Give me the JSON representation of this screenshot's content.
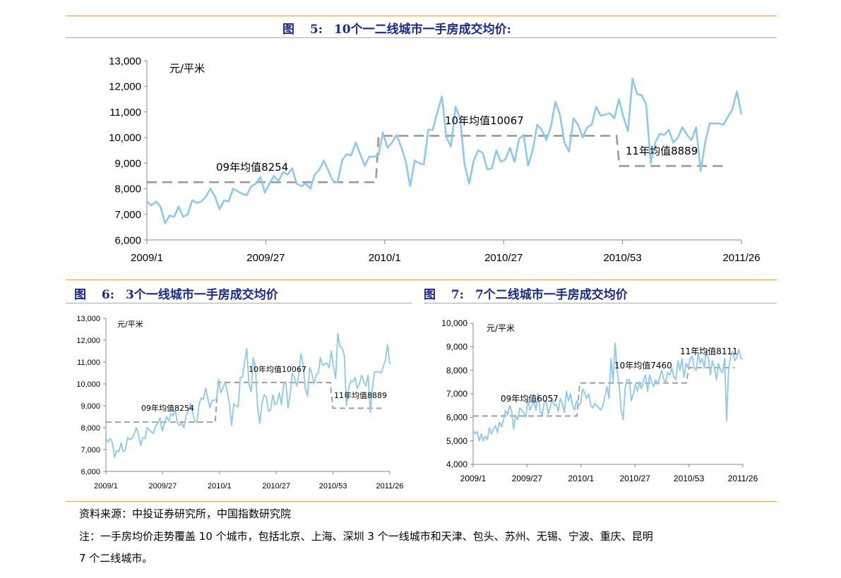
{
  "figures": [
    {
      "label": "图",
      "number": "5:",
      "text": "10个一二线城市一手房成交均价:"
    },
    {
      "label": "图",
      "number": "6:",
      "text": "3个一线城市一手房成交均价"
    },
    {
      "label": "图",
      "number": "7:",
      "text": "7个二线城市一手房成交均价"
    }
  ],
  "footer": {
    "source": "资料来源：中投证券研究所，中国指数研究院",
    "note_line1": "注：一手房均价走势覆盖 10 个城市，包括北京、上海、深圳 3 个一线城市和天津、包头、苏州、无锡、宁波、重庆、昆明",
    "note_line2": "7 个二线城市。"
  },
  "colors": {
    "line": "#8ec8f2",
    "avg": "#999999",
    "rule": "#e8a060",
    "title": "#1a2a8a"
  },
  "chart_data": [
    {
      "type": "line",
      "title": "10个一二线城市一手房成交均价",
      "unit": "元/平米",
      "ylim": [
        6000,
        13000
      ],
      "yticks": [
        6000,
        7000,
        8000,
        9000,
        10000,
        11000,
        12000,
        13000
      ],
      "ytick_labels": [
        "6,000",
        "7,000",
        "8,000",
        "9,000",
        "10,000",
        "11,000",
        "12,000",
        "13,000"
      ],
      "xtick_labels": [
        "2009/1",
        "2009/27",
        "2010/1",
        "2010/27",
        "2010/53",
        "2011/26"
      ],
      "series": [
        {
          "name": "一手房成交均价",
          "values": [
            7500,
            7350,
            7500,
            7300,
            6650,
            6950,
            6900,
            7300,
            6900,
            7000,
            7550,
            7450,
            7500,
            7700,
            8000,
            7700,
            7200,
            7550,
            7500,
            8000,
            7900,
            7800,
            7750,
            8100,
            8200,
            8450,
            7850,
            8200,
            8500,
            8300,
            8650,
            8550,
            8800,
            8200,
            8100,
            8200,
            8000,
            8550,
            8750,
            9100,
            8700,
            8300,
            8250,
            9100,
            9350,
            9300,
            9800,
            9350,
            8900,
            9250,
            9250,
            9300,
            10200,
            9600,
            9800,
            10100,
            9650,
            9100,
            8100,
            9100,
            9000,
            8950,
            10300,
            10300,
            11000,
            11600,
            10000,
            9650,
            11200,
            10750,
            8950,
            8200,
            9100,
            9500,
            9400,
            8750,
            8800,
            9500,
            9050,
            9150,
            9600,
            9050,
            9950,
            10100,
            8900,
            9500,
            10500,
            10300,
            9900,
            10400,
            11400,
            10900,
            9800,
            9450,
            10750,
            10500,
            10000,
            10400,
            10500,
            11200,
            10850,
            10900,
            10950,
            10750,
            11500,
            10800,
            10250,
            12300,
            11700,
            11650,
            11300,
            9000,
            9800,
            10150,
            10100,
            10300,
            9800,
            10000,
            10400,
            10100,
            9900,
            10400,
            8700,
            9800,
            10550,
            10550,
            10550,
            10500,
            10800,
            11100,
            11800,
            10900
          ]
        }
      ],
      "averages": [
        {
          "label": "09年均值8254",
          "value": 8254
        },
        {
          "label": "10年均值10067",
          "value": 10067
        },
        {
          "label": "11年均值8889",
          "value": 8889
        }
      ]
    },
    {
      "type": "line",
      "title": "3个一线城市一手房成交均价",
      "unit": "元/平米",
      "ylim": [
        6000,
        13000
      ],
      "yticks": [
        6000,
        7000,
        8000,
        9000,
        10000,
        11000,
        12000,
        13000
      ],
      "ytick_labels": [
        "6,000",
        "7,000",
        "8,000",
        "9,000",
        "10,000",
        "11,000",
        "12,000",
        "13,000"
      ],
      "xtick_labels": [
        "2009/1",
        "2009/27",
        "2010/1",
        "2010/27",
        "2010/53",
        "2011/26"
      ],
      "series": [
        {
          "name": "一手房成交均价",
          "values": [
            7500,
            7350,
            7500,
            7300,
            6650,
            6950,
            6900,
            7300,
            6900,
            7000,
            7550,
            7450,
            7500,
            7700,
            8000,
            7700,
            7200,
            7550,
            7500,
            8000,
            7900,
            7800,
            7750,
            8100,
            8200,
            8450,
            7850,
            8200,
            8500,
            8300,
            8650,
            8550,
            8800,
            8200,
            8100,
            8200,
            8000,
            8550,
            8750,
            9100,
            8700,
            8300,
            8250,
            9100,
            9350,
            9300,
            9800,
            9350,
            8900,
            9250,
            9250,
            9300,
            10200,
            9600,
            9800,
            10100,
            9650,
            9100,
            8100,
            9100,
            9000,
            8950,
            10300,
            10300,
            11000,
            11600,
            10000,
            9650,
            11200,
            10750,
            8950,
            8200,
            9100,
            9500,
            9400,
            8750,
            8800,
            9500,
            9050,
            9150,
            9600,
            9050,
            9950,
            10100,
            8900,
            9500,
            10500,
            10300,
            9900,
            10400,
            11400,
            10900,
            9800,
            9450,
            10750,
            10500,
            10000,
            10400,
            10500,
            11200,
            10850,
            10900,
            10950,
            10750,
            11500,
            10800,
            10250,
            12300,
            11700,
            11650,
            11300,
            9000,
            9800,
            10150,
            10100,
            10300,
            9800,
            10000,
            10400,
            10100,
            9900,
            10400,
            8700,
            9800,
            10550,
            10550,
            10550,
            10500,
            10800,
            11100,
            11800,
            10900
          ]
        }
      ],
      "averages": [
        {
          "label": "09年均值8254",
          "value": 8254
        },
        {
          "label": "10年均值10067",
          "value": 10067
        },
        {
          "label": "11年均值8889",
          "value": 8889
        }
      ]
    },
    {
      "type": "line",
      "title": "7个二线城市一手房成交均价",
      "unit": "元/平米",
      "ylim": [
        4000,
        10000
      ],
      "yticks": [
        4000,
        5000,
        6000,
        7000,
        8000,
        9000,
        10000
      ],
      "ytick_labels": [
        "4,000",
        "5,000",
        "6,000",
        "7,000",
        "8,000",
        "9,000",
        "10,000"
      ],
      "xtick_labels": [
        "2009/1",
        "2009/27",
        "2010/1",
        "2010/27",
        "2010/53",
        "2011/26"
      ],
      "series": [
        {
          "name": "一手房成交均价",
          "values": [
            5450,
            5300,
            5400,
            5000,
            5300,
            5000,
            5200,
            5050,
            5550,
            5300,
            5500,
            5650,
            5350,
            5800,
            5600,
            5900,
            6300,
            6100,
            6500,
            6250,
            5500,
            6100,
            5900,
            6400,
            6300,
            6200,
            6000,
            6800,
            6300,
            6500,
            6700,
            6300,
            7000,
            6300,
            6100,
            6600,
            6700,
            6150,
            6400,
            6800,
            6500,
            6550,
            6250,
            6800,
            6600,
            6200,
            7100,
            6700,
            7000,
            6500,
            6300,
            6700,
            6500,
            6600,
            7200,
            7050,
            6800,
            7000,
            6500,
            6400,
            6600,
            6500,
            6400,
            6300,
            6500,
            6900,
            7300,
            6800,
            8500,
            7500,
            9150,
            8000,
            7400,
            6300,
            5900,
            7300,
            7600,
            7600,
            6700,
            7000,
            7400,
            7100,
            7500,
            7200,
            7600,
            7800,
            7100,
            7800,
            7500,
            7300,
            7600,
            7400,
            7700,
            8000,
            7600,
            7500,
            7900,
            7800,
            8100,
            7700,
            7600,
            8400,
            8000,
            8500,
            7700,
            8300,
            8100,
            8500,
            8600,
            8100,
            8000,
            8700,
            8300,
            8500,
            8100,
            8900,
            8500,
            7800,
            8400,
            8100,
            7600,
            8300,
            8000,
            7900,
            8500,
            5850,
            8100,
            8600,
            8800,
            8400,
            8550,
            8900,
            8500,
            8500
          ]
        }
      ],
      "averages": [
        {
          "label": "09年均值6057",
          "value": 6057
        },
        {
          "label": "10年均值7460",
          "value": 7460
        },
        {
          "label": "11年均值8111",
          "value": 8111
        }
      ]
    }
  ]
}
